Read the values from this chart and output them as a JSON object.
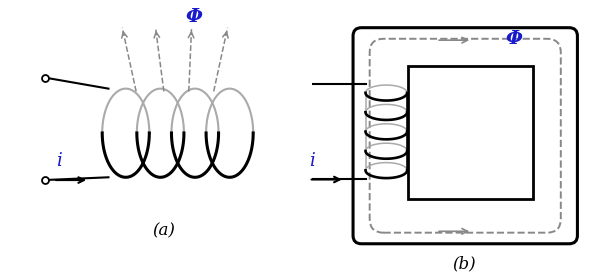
{
  "fig_width": 6.0,
  "fig_height": 2.77,
  "dpi": 100,
  "bg_color": "#ffffff",
  "coil_color": "#000000",
  "gray_color": "#aaaaaa",
  "arrow_color": "#888888",
  "label_color": "#000000",
  "phi_color": "#1a1acd",
  "i_color": "#1a1acd",
  "label_a": "(a)",
  "label_b": "(b)",
  "phi_label": "Φ",
  "i_label": "i"
}
